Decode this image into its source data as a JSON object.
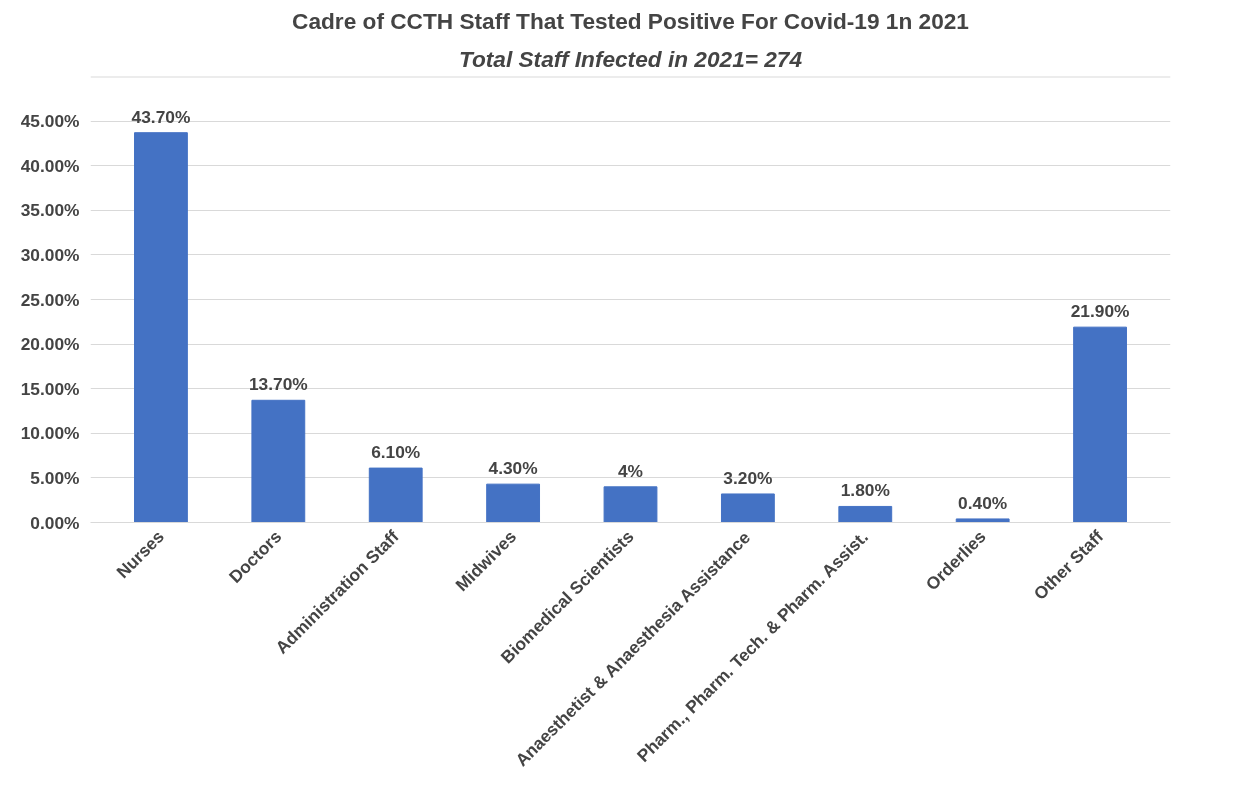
{
  "chart_data": {
    "type": "bar",
    "title": "Cadre of CCTH Staff That Tested Positive For Covid-19 1n 2021",
    "subtitle": "Total Staff Infected in 2021= 274",
    "categories": [
      "Nurses",
      "Doctors",
      "Administration Staff",
      "Midwives",
      "Biomedical Scientists",
      "Anaesthetist & Anaesthesia Assistance",
      "Pharm., Pharm. Tech. & Pharm. Assist.",
      "Orderlies",
      "Other Staff"
    ],
    "values": [
      43.7,
      13.7,
      6.1,
      4.3,
      4,
      3.2,
      1.8,
      0.4,
      21.9
    ],
    "value_labels": [
      "43.70%",
      "13.70%",
      "6.10%",
      "4.30%",
      "4%",
      "3.20%",
      "1.80%",
      "0.40%",
      "21.90%"
    ],
    "color": "#4472c4",
    "ylim": [
      0,
      50
    ],
    "yticks": [
      {
        "value": 0,
        "label": "0.00%"
      },
      {
        "value": 5,
        "label": "5.00%"
      },
      {
        "value": 10,
        "label": "10.00%"
      },
      {
        "value": 15,
        "label": "15.00%"
      },
      {
        "value": 20,
        "label": "20.00%"
      },
      {
        "value": 25,
        "label": "25.00%"
      },
      {
        "value": 30,
        "label": "30.00%"
      },
      {
        "value": 35,
        "label": "35.00%"
      },
      {
        "value": 40,
        "label": "40.00%"
      },
      {
        "value": 45,
        "label": "45.00%"
      },
      {
        "value": 50,
        "label": null
      }
    ],
    "grid": "y"
  }
}
